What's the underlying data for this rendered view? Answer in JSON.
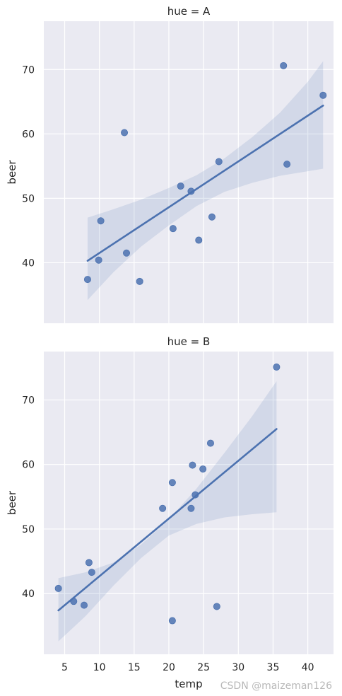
{
  "chart_data": {
    "type": "scatter",
    "xlabel": "temp",
    "colors": {
      "background": "#eaeaf2",
      "grid": "#ffffff",
      "marker": "#4c72b0",
      "line": "#4c72b0",
      "band": "#4c72b0"
    },
    "xlim": [
      2.0,
      43.7
    ],
    "x_ticks": [
      5,
      10,
      15,
      20,
      25,
      30,
      35,
      40
    ],
    "panels": [
      {
        "title": "hue = A",
        "ylabel": "beer",
        "ylim": [
          30.6,
          77.5
        ],
        "y_ticks": [
          40,
          50,
          60,
          70
        ],
        "points": [
          {
            "x": 8.3,
            "y": 37.4
          },
          {
            "x": 9.9,
            "y": 40.4
          },
          {
            "x": 10.2,
            "y": 46.5
          },
          {
            "x": 13.6,
            "y": 60.2
          },
          {
            "x": 13.9,
            "y": 41.5
          },
          {
            "x": 15.8,
            "y": 37.1
          },
          {
            "x": 20.6,
            "y": 45.3
          },
          {
            "x": 21.7,
            "y": 51.9
          },
          {
            "x": 23.2,
            "y": 51.1
          },
          {
            "x": 24.3,
            "y": 43.5
          },
          {
            "x": 26.2,
            "y": 47.1
          },
          {
            "x": 27.2,
            "y": 55.7
          },
          {
            "x": 36.5,
            "y": 70.6
          },
          {
            "x": 37.0,
            "y": 55.3
          },
          {
            "x": 42.2,
            "y": 66.0
          }
        ],
        "fit": {
          "x": [
            8.3,
            42.2
          ],
          "y": [
            40.3,
            64.4
          ]
        },
        "band": {
          "x": [
            8.3,
            12,
            16,
            20,
            24,
            28,
            32,
            36,
            40,
            42.2
          ],
          "lower": [
            34.2,
            38.5,
            42.5,
            45.8,
            48.8,
            51.0,
            52.4,
            53.5,
            54.2,
            54.6
          ],
          "upper": [
            47.0,
            48.3,
            49.8,
            51.6,
            53.6,
            56.2,
            59.5,
            63.3,
            68.1,
            71.3
          ]
        }
      },
      {
        "title": "hue = B",
        "ylabel": "beer",
        "ylim": [
          30.6,
          77.5
        ],
        "y_ticks": [
          40,
          50,
          60,
          70
        ],
        "points": [
          {
            "x": 4.1,
            "y": 40.8
          },
          {
            "x": 6.3,
            "y": 38.8
          },
          {
            "x": 7.8,
            "y": 38.2
          },
          {
            "x": 8.5,
            "y": 44.8
          },
          {
            "x": 8.9,
            "y": 43.3
          },
          {
            "x": 19.1,
            "y": 53.2
          },
          {
            "x": 20.5,
            "y": 57.2
          },
          {
            "x": 20.5,
            "y": 35.8
          },
          {
            "x": 23.2,
            "y": 53.2
          },
          {
            "x": 23.4,
            "y": 59.9
          },
          {
            "x": 23.8,
            "y": 55.3
          },
          {
            "x": 24.9,
            "y": 59.3
          },
          {
            "x": 26.0,
            "y": 63.3
          },
          {
            "x": 26.9,
            "y": 38.0
          },
          {
            "x": 35.5,
            "y": 75.1
          }
        ],
        "fit": {
          "x": [
            4.1,
            35.5
          ],
          "y": [
            37.4,
            65.5
          ]
        },
        "band": {
          "x": [
            4.1,
            8,
            12,
            16,
            20,
            24,
            28,
            32,
            35.5
          ],
          "lower": [
            32.6,
            36.5,
            41.2,
            45.5,
            49.0,
            50.8,
            51.8,
            52.3,
            52.6
          ],
          "upper": [
            42.4,
            43.3,
            44.8,
            47.6,
            51.5,
            56.3,
            61.8,
            67.5,
            72.9
          ]
        }
      }
    ]
  },
  "watermark": "CSDN @maizeman126"
}
